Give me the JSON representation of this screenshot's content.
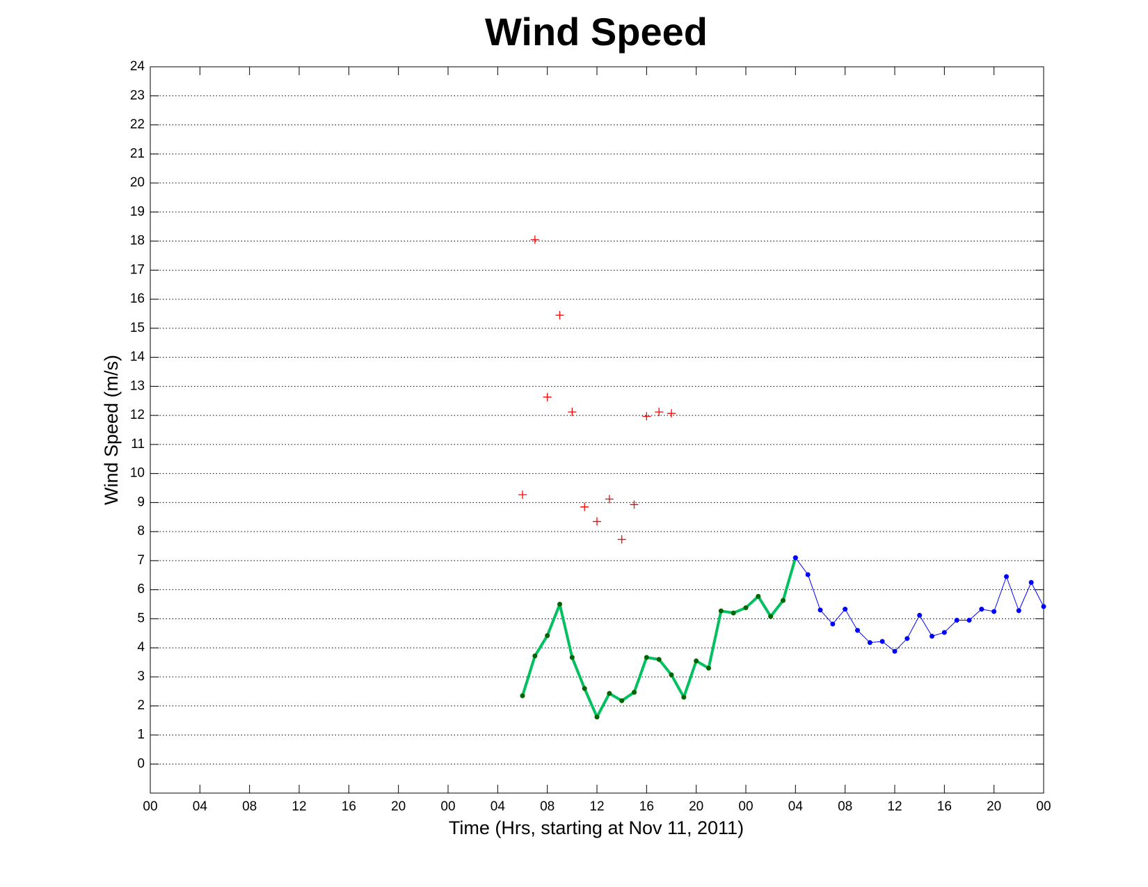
{
  "chart_data": {
    "type": "line",
    "title": "Wind Speed",
    "xlabel": "Time (Hrs, starting at Nov 11, 2011)",
    "ylabel": "Wind Speed (m/s)",
    "xlim": [
      0,
      72
    ],
    "ylim": [
      -1,
      24
    ],
    "xticks": [
      {
        "value": 0,
        "label": "00"
      },
      {
        "value": 4,
        "label": "04"
      },
      {
        "value": 8,
        "label": "08"
      },
      {
        "value": 12,
        "label": "12"
      },
      {
        "value": 16,
        "label": "16"
      },
      {
        "value": 20,
        "label": "20"
      },
      {
        "value": 24,
        "label": "00"
      },
      {
        "value": 28,
        "label": "04"
      },
      {
        "value": 32,
        "label": "08"
      },
      {
        "value": 36,
        "label": "12"
      },
      {
        "value": 40,
        "label": "16"
      },
      {
        "value": 44,
        "label": "20"
      },
      {
        "value": 48,
        "label": "00"
      },
      {
        "value": 52,
        "label": "04"
      },
      {
        "value": 56,
        "label": "08"
      },
      {
        "value": 60,
        "label": "12"
      },
      {
        "value": 64,
        "label": "16"
      },
      {
        "value": 68,
        "label": "20"
      },
      {
        "value": 72,
        "label": "00"
      }
    ],
    "yticks": [
      0,
      1,
      2,
      3,
      4,
      5,
      6,
      7,
      8,
      9,
      10,
      11,
      12,
      13,
      14,
      15,
      16,
      17,
      18,
      19,
      20,
      21,
      22,
      23,
      24
    ],
    "grid": "y",
    "series": [
      {
        "color": "#ff0000",
        "line_width": 0,
        "marker": "+",
        "x": [
          30,
          31,
          32,
          33,
          34,
          35,
          36,
          37,
          38,
          39,
          40,
          41,
          42
        ],
        "values": [
          9.27,
          18.05,
          12.63,
          15.45,
          12.12,
          8.85,
          8.35,
          9.12,
          7.73,
          8.93,
          11.97,
          12.12,
          12.07
        ]
      },
      {
        "color": "#00c060",
        "marker_color": "#006400",
        "line_width": 4,
        "marker": "o",
        "x": [
          30,
          31,
          32,
          33,
          34,
          35,
          36,
          37,
          38,
          39,
          40,
          41,
          42,
          43,
          44,
          45,
          46,
          47,
          48,
          49,
          50,
          51,
          52
        ],
        "values": [
          2.35,
          3.72,
          4.42,
          5.5,
          3.67,
          2.6,
          1.62,
          2.43,
          2.18,
          2.47,
          3.67,
          3.6,
          3.07,
          2.3,
          3.55,
          3.3,
          5.27,
          5.2,
          5.38,
          5.77,
          5.08,
          5.63,
          7.1
        ]
      },
      {
        "color": "#0000ff",
        "marker_color": "#0000ff",
        "line_width": 1,
        "marker": "o",
        "x": [
          52,
          53,
          54,
          55,
          56,
          57,
          58,
          59,
          60,
          61,
          62,
          63,
          64,
          65,
          66,
          67,
          68,
          69,
          70,
          71,
          72
        ],
        "values": [
          7.1,
          6.52,
          5.3,
          4.82,
          5.33,
          4.6,
          4.18,
          4.22,
          3.88,
          4.32,
          5.12,
          4.4,
          4.53,
          4.95,
          4.95,
          5.33,
          5.25,
          6.45,
          5.28,
          6.25,
          5.42
        ]
      }
    ]
  }
}
